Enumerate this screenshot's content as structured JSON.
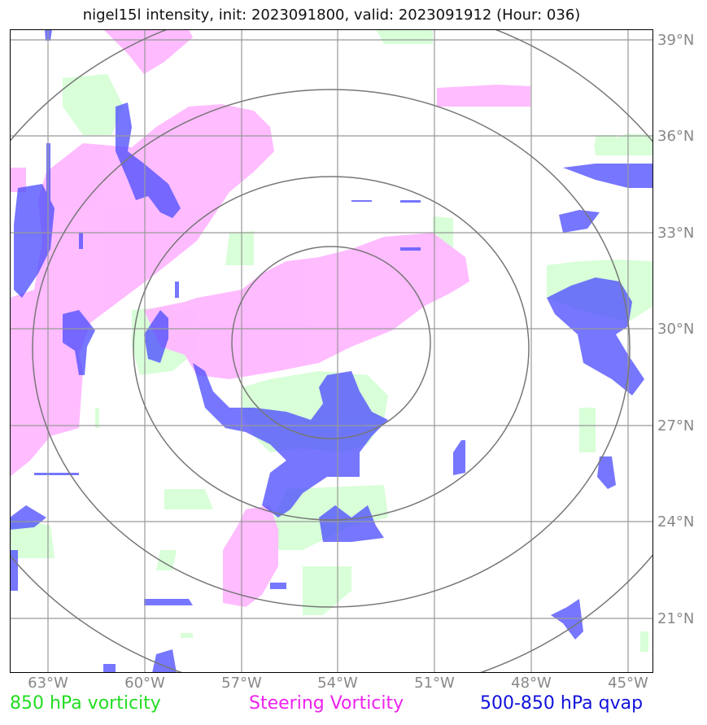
{
  "title": "nigel15l intensity, init: 2023091800, valid: 2023091912 (Hour: 036)",
  "lat_labels": [
    "39°N",
    "36°N",
    "33°N",
    "30°N",
    "27°N",
    "24°N",
    "21°N"
  ],
  "lon_labels": [
    "63°W",
    "60°W",
    "57°W",
    "54°W",
    "51°W",
    "48°W",
    "45°W"
  ],
  "legend": {
    "green": "850 hPa vorticity",
    "magenta": "Steering Vorticity",
    "blue": "500-850 hPa qvap"
  },
  "colors": {
    "green": "#d8ffd8",
    "magenta": "#ffb8ff",
    "blue": "#5050ff",
    "gridline": "#999999",
    "ring": "#777777",
    "legend_green": "#22dd22",
    "legend_magenta": "#ee22ee",
    "legend_blue": "#1111dd"
  }
}
